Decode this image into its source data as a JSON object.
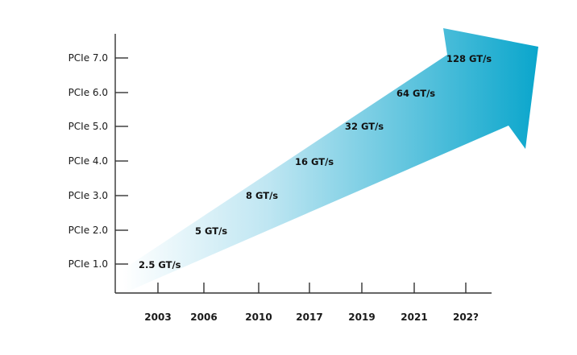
{
  "chart_data": {
    "type": "line",
    "title": "",
    "xlabel": "",
    "ylabel": "",
    "x": [
      "2003",
      "2006",
      "2010",
      "2017",
      "2019",
      "2021",
      "202?"
    ],
    "y_categories": [
      "PCIe 1.0",
      "PCIe 2.0",
      "PCIe 3.0",
      "PCIe 4.0",
      "PCIe 5.0",
      "PCIe 6.0",
      "PCIe 7.0"
    ],
    "series": [
      {
        "values": [
          "PCIe 1.0",
          "PCIe 2.0",
          "PCIe 3.0",
          "PCIe 4.0",
          "PCIe 5.0",
          "PCIe 6.0",
          "PCIe 7.0"
        ],
        "labels": [
          "2.5 GT/s",
          "5 GT/s",
          "8 GT/s",
          "16 GT/s",
          "32 GT/s",
          "64 GT/s",
          "128 GT/s"
        ]
      }
    ],
    "grid": false,
    "colors": {
      "arrow_start": "#ffffff",
      "arrow_end": "#0aa6cc",
      "axis": "#333333"
    }
  }
}
